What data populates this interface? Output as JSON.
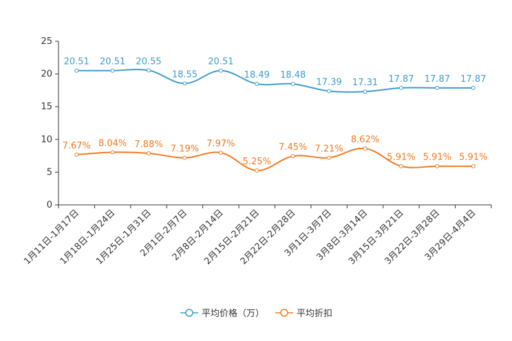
{
  "chart_data": {
    "type": "line",
    "categories": [
      "1月11日-1月17日",
      "1月18日-1月24日",
      "1月25日-1月31日",
      "2月1日-2月7日",
      "2月8日-2月14日",
      "2月15日-2月21日",
      "2月22日-2月28日",
      "3月1日-3月7日",
      "3月8日-3月14日",
      "3月15日-3月21日",
      "3月22日-3月28日",
      "3月29日-4月4日"
    ],
    "ylim": [
      0,
      25
    ],
    "yticks": [
      0,
      5,
      10,
      15,
      20,
      25
    ],
    "grid": false,
    "legend_position": "bottom-center",
    "series": [
      {
        "name": "平均价格（万）",
        "color": "#3e9ccc",
        "values": [
          20.51,
          20.51,
          20.55,
          18.55,
          20.51,
          18.49,
          18.48,
          17.39,
          17.31,
          17.87,
          17.87,
          17.87
        ],
        "labels": [
          "20.51",
          "20.51",
          "20.55",
          "18.55",
          "20.51",
          "18.49",
          "18.48",
          "17.39",
          "17.31",
          "17.87",
          "17.87",
          "17.87"
        ]
      },
      {
        "name": "平均折扣",
        "color": "#f5781e",
        "values": [
          7.67,
          8.04,
          7.88,
          7.19,
          7.97,
          5.25,
          7.45,
          7.21,
          8.62,
          5.91,
          5.91,
          5.91
        ],
        "labels": [
          "7.67%",
          "8.04%",
          "7.88%",
          "7.19%",
          "7.97%",
          "5.25%",
          "7.45%",
          "7.21%",
          "8.62%",
          "5.91%",
          "5.91%",
          "5.91%"
        ]
      }
    ]
  }
}
